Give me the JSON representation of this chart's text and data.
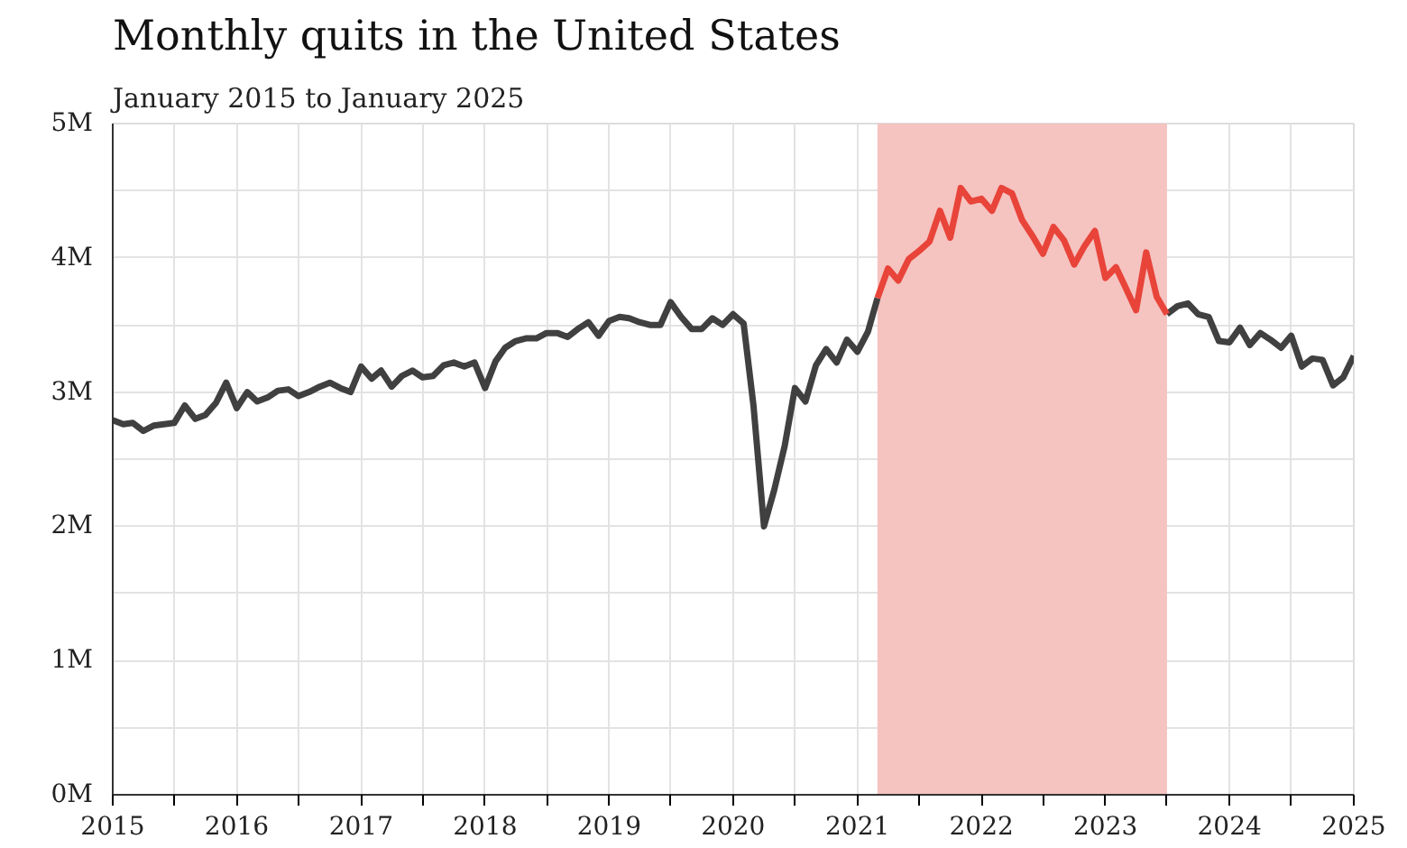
{
  "chart_data": {
    "type": "line",
    "title": "Monthly quits in the United States",
    "subtitle": "January 2015 to January 2025",
    "x": [
      "2015-01",
      "2015-02",
      "2015-03",
      "2015-04",
      "2015-05",
      "2015-06",
      "2015-07",
      "2015-08",
      "2015-09",
      "2015-10",
      "2015-11",
      "2015-12",
      "2016-01",
      "2016-02",
      "2016-03",
      "2016-04",
      "2016-05",
      "2016-06",
      "2016-07",
      "2016-08",
      "2016-09",
      "2016-10",
      "2016-11",
      "2016-12",
      "2017-01",
      "2017-02",
      "2017-03",
      "2017-04",
      "2017-05",
      "2017-06",
      "2017-07",
      "2017-08",
      "2017-09",
      "2017-10",
      "2017-11",
      "2017-12",
      "2018-01",
      "2018-02",
      "2018-03",
      "2018-04",
      "2018-05",
      "2018-06",
      "2018-07",
      "2018-08",
      "2018-09",
      "2018-10",
      "2018-11",
      "2018-12",
      "2019-01",
      "2019-02",
      "2019-03",
      "2019-04",
      "2019-05",
      "2019-06",
      "2019-07",
      "2019-08",
      "2019-09",
      "2019-10",
      "2019-11",
      "2019-12",
      "2020-01",
      "2020-02",
      "2020-03",
      "2020-04",
      "2020-05",
      "2020-06",
      "2020-07",
      "2020-08",
      "2020-09",
      "2020-10",
      "2020-11",
      "2020-12",
      "2021-01",
      "2021-02",
      "2021-03",
      "2021-04",
      "2021-05",
      "2021-06",
      "2021-07",
      "2021-08",
      "2021-09",
      "2021-10",
      "2021-11",
      "2021-12",
      "2022-01",
      "2022-02",
      "2022-03",
      "2022-04",
      "2022-05",
      "2022-06",
      "2022-07",
      "2022-08",
      "2022-09",
      "2022-10",
      "2022-11",
      "2022-12",
      "2023-01",
      "2023-02",
      "2023-03",
      "2023-04",
      "2023-05",
      "2023-06",
      "2023-07",
      "2023-08",
      "2023-09",
      "2023-10",
      "2023-11",
      "2023-12",
      "2024-01",
      "2024-02",
      "2024-03",
      "2024-04",
      "2024-05",
      "2024-06",
      "2024-07",
      "2024-08",
      "2024-09",
      "2024-10",
      "2024-11",
      "2024-12",
      "2025-01"
    ],
    "series": [
      {
        "color": "#404040",
        "values": [
          2.79,
          2.76,
          2.77,
          2.71,
          2.75,
          2.76,
          2.77,
          2.9,
          2.8,
          2.83,
          2.92,
          3.07,
          2.88,
          3.0,
          2.93,
          2.96,
          3.01,
          3.02,
          2.97,
          3.0,
          3.04,
          3.07,
          3.03,
          3.0,
          3.19,
          3.1,
          3.16,
          3.04,
          3.12,
          3.16,
          3.11,
          3.12,
          3.2,
          3.22,
          3.19,
          3.22,
          3.03,
          3.23,
          3.33,
          3.38,
          3.4,
          3.4,
          3.44,
          3.44,
          3.41,
          3.47,
          3.52,
          3.42,
          3.53,
          3.56,
          3.55,
          3.52,
          3.5,
          3.5,
          3.67,
          3.56,
          3.47,
          3.47,
          3.55,
          3.5,
          3.58,
          3.51,
          2.9,
          2.0,
          2.27,
          2.6,
          3.03,
          2.93,
          3.2,
          3.32,
          3.22,
          3.39,
          3.3,
          3.45,
          3.7,
          null,
          null,
          null,
          null,
          null,
          null,
          null,
          null,
          null,
          null,
          null,
          null,
          null,
          null,
          null,
          null,
          null,
          null,
          null,
          null,
          null,
          null,
          null,
          null,
          null,
          null,
          null,
          3.58,
          3.64,
          3.66,
          3.58,
          3.56,
          3.38,
          3.37,
          3.48,
          3.35,
          3.44,
          3.39,
          3.33,
          3.42,
          3.19,
          3.25,
          3.24,
          3.05,
          3.11,
          3.27
        ]
      },
      {
        "color": "#e8443a",
        "x": [
          "2021-03",
          "2021-04",
          "2021-05",
          "2021-06",
          "2021-07",
          "2021-08",
          "2021-09",
          "2021-10",
          "2021-11",
          "2021-12",
          "2022-01",
          "2022-02",
          "2022-03",
          "2022-04",
          "2022-05",
          "2022-06",
          "2022-07",
          "2022-08",
          "2022-09",
          "2022-10",
          "2022-11",
          "2022-12",
          "2023-01",
          "2023-02",
          "2023-03",
          "2023-04",
          "2023-05",
          "2023-06",
          "2023-07"
        ],
        "values": [
          3.7,
          3.92,
          3.83,
          3.99,
          4.05,
          4.12,
          4.35,
          4.15,
          4.52,
          4.42,
          4.44,
          4.35,
          4.52,
          4.48,
          4.28,
          4.16,
          4.03,
          4.23,
          4.13,
          3.95,
          4.09,
          4.2,
          3.85,
          3.93,
          3.78,
          3.61,
          4.04,
          3.71,
          3.58
        ]
      }
    ],
    "bands": [
      {
        "axis": "x",
        "from": "2021-03",
        "to": "2023-07",
        "color": "#f5c3c0"
      }
    ],
    "xlim": [
      "2015-01",
      "2025-01"
    ],
    "xticks": [
      {
        "value": "2015-01",
        "label": "2015"
      },
      {
        "value": "2015-07",
        "label": null
      },
      {
        "value": "2016-01",
        "label": "2016"
      },
      {
        "value": "2016-07",
        "label": null
      },
      {
        "value": "2017-01",
        "label": "2017"
      },
      {
        "value": "2017-07",
        "label": null
      },
      {
        "value": "2018-01",
        "label": "2018"
      },
      {
        "value": "2018-07",
        "label": null
      },
      {
        "value": "2019-01",
        "label": "2019"
      },
      {
        "value": "2019-07",
        "label": null
      },
      {
        "value": "2020-01",
        "label": "2020"
      },
      {
        "value": "2020-07",
        "label": null
      },
      {
        "value": "2021-01",
        "label": "2021"
      },
      {
        "value": "2021-07",
        "label": null
      },
      {
        "value": "2022-01",
        "label": "2022"
      },
      {
        "value": "2022-07",
        "label": null
      },
      {
        "value": "2023-01",
        "label": "2023"
      },
      {
        "value": "2023-07",
        "label": null
      },
      {
        "value": "2024-01",
        "label": "2024"
      },
      {
        "value": "2024-07",
        "label": null
      },
      {
        "value": "2025-01",
        "label": "2025"
      }
    ],
    "ylim": [
      0,
      5
    ],
    "yticks": [
      {
        "value": 0,
        "label": "0M"
      },
      {
        "value": 0.5,
        "label": null
      },
      {
        "value": 1,
        "label": "1M"
      },
      {
        "value": 1.5,
        "label": null
      },
      {
        "value": 2,
        "label": "2M"
      },
      {
        "value": 2.5,
        "label": null
      },
      {
        "value": 3,
        "label": "3M"
      },
      {
        "value": 3.5,
        "label": null
      },
      {
        "value": 4,
        "label": "4M"
      },
      {
        "value": 4.5,
        "label": null
      },
      {
        "value": 5,
        "label": "5M"
      }
    ],
    "grid": true,
    "marker": "none",
    "line_style": "solid"
  }
}
